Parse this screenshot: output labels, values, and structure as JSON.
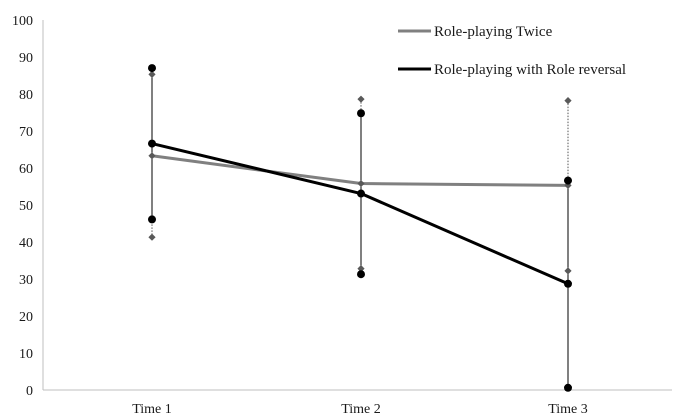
{
  "chart_data": {
    "type": "line",
    "title": "",
    "xlabel": "",
    "ylabel": "",
    "categories": [
      "Time 1",
      "Time 2",
      "Time 3"
    ],
    "ylim": [
      0,
      100
    ],
    "yticks": [
      "0",
      "10",
      "20",
      "30",
      "40",
      "50",
      "60",
      "70",
      "80",
      "90",
      "100"
    ],
    "grid": false,
    "legend_position": "top-right",
    "series": [
      {
        "name": "Role-playing Twice",
        "color": "#808080",
        "marker": "diamond",
        "error_style": "dotted",
        "values": [
          63.3,
          55.8,
          55.3
        ],
        "error_high": [
          85.3,
          78.6,
          78.2
        ],
        "error_low": [
          41.3,
          32.8,
          32.2
        ]
      },
      {
        "name": "Role-playing with Role reversal",
        "color": "#000000",
        "marker": "circle",
        "error_style": "solid",
        "values": [
          66.6,
          53.1,
          28.7
        ],
        "error_high": [
          87.0,
          74.8,
          56.6
        ],
        "error_low": [
          46.1,
          31.3,
          0.6
        ]
      }
    ]
  }
}
